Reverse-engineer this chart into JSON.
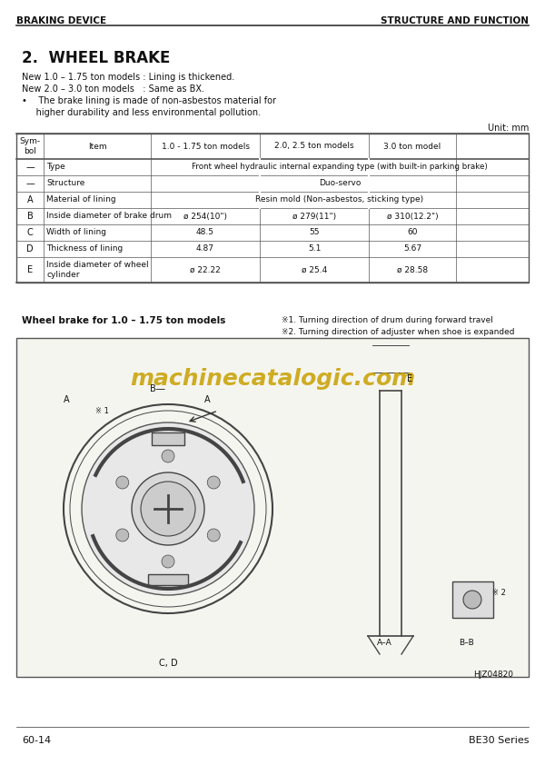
{
  "page_bg": "#ffffff",
  "header_left": "BRAKING DEVICE",
  "header_right": "STRUCTURE AND FUNCTION",
  "section_title": "2.  WHEEL BRAKE",
  "intro_lines": [
    "New 1.0 – 1.75 ton models : Lining is thickened.",
    "New 2.0 – 3.0 ton models   : Same as BX.",
    "•    The brake lining is made of non-asbestos material for",
    "     higher durability and less environmental pollution."
  ],
  "unit_label": "Unit: mm",
  "table_headers": [
    "Sym-\nbol",
    "Item",
    "1.0 - 1.75 ton models",
    "2.0, 2.5 ton models",
    "3.0 ton model"
  ],
  "table_rows": [
    [
      "—",
      "Type",
      "Front wheel hydraulic internal expanding type (with built-in parking brake)",
      "",
      ""
    ],
    [
      "—",
      "Structure",
      "",
      "Duo-servo",
      ""
    ],
    [
      "A",
      "Material of lining",
      "",
      "Resin mold (Non-asbestos, sticking type)",
      ""
    ],
    [
      "B",
      "Inside diameter of brake drum",
      "ø 254(10\")",
      "ø 279(11\")",
      "ø 310(12.2\")"
    ],
    [
      "C",
      "Width of lining",
      "48.5",
      "55",
      "60"
    ],
    [
      "D",
      "Thickness of lining",
      "4.87",
      "5.1",
      "5.67"
    ],
    [
      "E",
      "Inside diameter of wheel\ncylinder",
      "ø 22.22",
      "ø 25.4",
      "ø 28.58"
    ]
  ],
  "diagram_label": "Wheel brake for 1.0 – 1.75 ton models",
  "note1": "※1. Turning direction of drum during forward travel",
  "note2": "※2. Turning direction of adjuster when shoe is expanded",
  "watermark": "machinecatalogic.com",
  "diagram_ref": "HJZ04820",
  "footer_left": "60-14",
  "footer_right": "BE30 Series"
}
